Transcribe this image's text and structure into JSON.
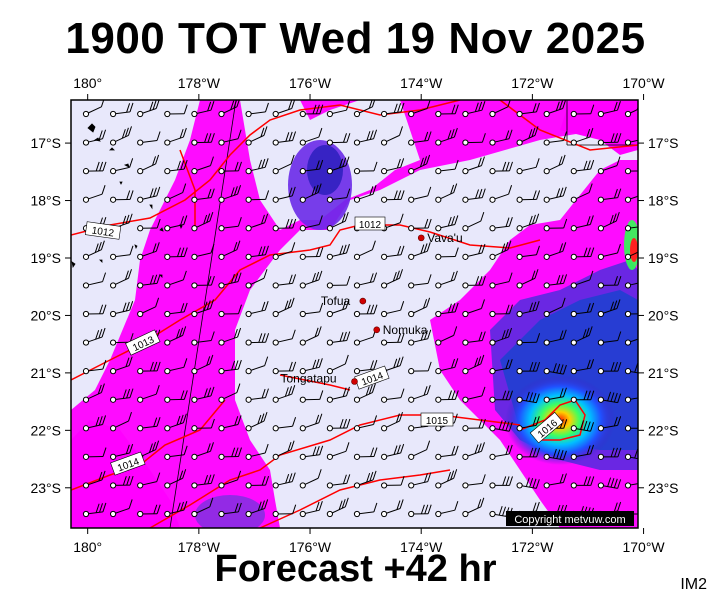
{
  "title": "1900 TOT Wed 19 Nov 2025",
  "subtitle": "Forecast +42 hr",
  "stamp": "IM2",
  "copyright": "Copyright metvuw.com",
  "lon_ticks": [
    "180°",
    "178°W",
    "176°W",
    "174°W",
    "172°W",
    "170°W"
  ],
  "lat_ticks": [
    "17°S",
    "18°S",
    "19°S",
    "20°S",
    "21°S",
    "22°S",
    "23°S"
  ],
  "places": [
    {
      "name": "Vava'u",
      "lon": -174.0,
      "lat": -18.65
    },
    {
      "name": "Tofua",
      "lon": -175.05,
      "lat": -19.75
    },
    {
      "name": "Nomuka",
      "lon": -174.8,
      "lat": -20.25
    },
    {
      "name": "Tongatapu",
      "lon": -175.2,
      "lat": -21.15
    }
  ],
  "isobar_labels": [
    "1012",
    "1012",
    "1013",
    "1014",
    "1014",
    "1015",
    "1016"
  ],
  "colors": {
    "land_bg": "#e8e8fb",
    "rain_light": "#ff00ff",
    "rain_mid": "#5020d0",
    "rain_high": "#00d0ff",
    "isobar": "#ff0000",
    "barb": "#000000"
  }
}
